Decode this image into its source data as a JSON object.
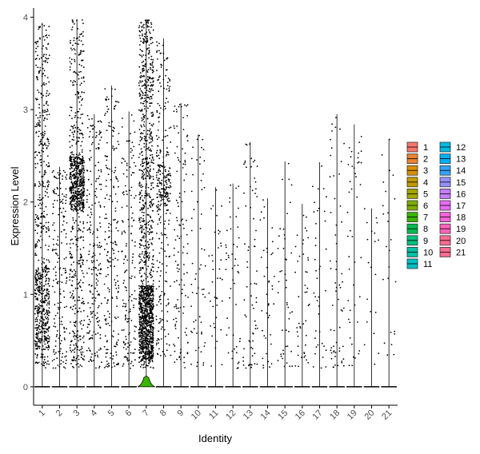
{
  "chart_data": {
    "type": "violin",
    "xlabel": "Identity",
    "ylabel": "Expression Level",
    "categories": [
      "1",
      "2",
      "3",
      "4",
      "5",
      "6",
      "7",
      "8",
      "9",
      "10",
      "11",
      "12",
      "13",
      "14",
      "15",
      "16",
      "17",
      "18",
      "19",
      "20",
      "21"
    ],
    "ylim": [
      -0.2,
      4.1
    ],
    "yticks": [
      0,
      1,
      2,
      3,
      4
    ],
    "max_values": [
      3.94,
      2.38,
      3.98,
      2.95,
      3.26,
      2.98,
      3.98,
      3.77,
      3.07,
      2.73,
      2.16,
      2.2,
      2.65,
      2.04,
      2.44,
      1.98,
      2.43,
      2.95,
      2.84,
      1.93,
      2.68
    ],
    "violin_shape": {
      "category": "7",
      "max_density_height": 0.1
    },
    "colors": [
      "#F8766D",
      "#EA8331",
      "#D89000",
      "#C09B00",
      "#A3A500",
      "#7CAE00",
      "#39B600",
      "#00BB4E",
      "#00BF7D",
      "#00C1A3",
      "#00BFC4",
      "#00BAE0",
      "#00B0F6",
      "#35A2FF",
      "#9590FF",
      "#C77CFF",
      "#E76BF3",
      "#FA62DB",
      "#FF62BC",
      "#FF6C91",
      "#FF6C91"
    ],
    "grid": false,
    "legend_position": "right",
    "legend_labels": [
      "1",
      "2",
      "3",
      "4",
      "5",
      "6",
      "7",
      "8",
      "9",
      "10",
      "11",
      "12",
      "13",
      "14",
      "15",
      "16",
      "17",
      "18",
      "19",
      "20",
      "21"
    ]
  }
}
